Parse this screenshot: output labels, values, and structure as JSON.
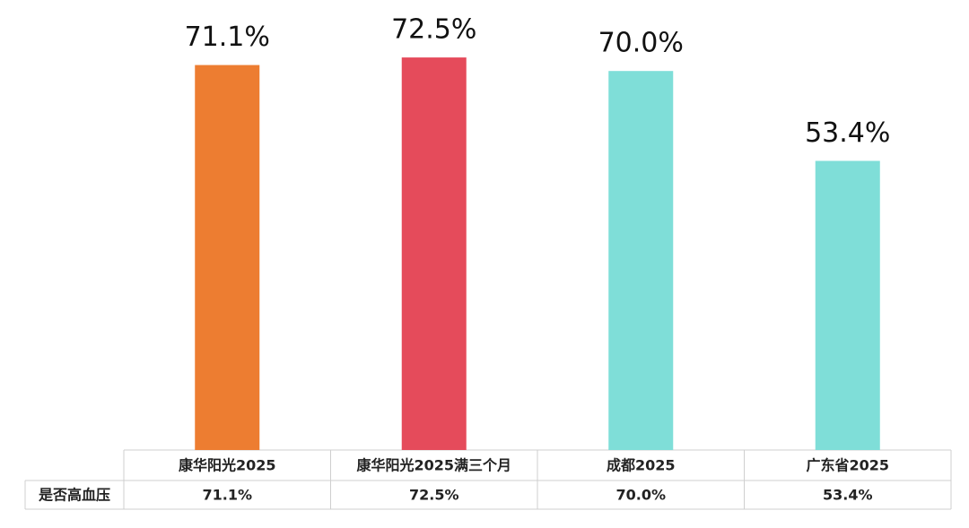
{
  "chart_data": {
    "type": "bar",
    "categories": [
      "康华阳光2025",
      "康华阳光2025满三个月",
      "成都2025",
      "广东省2025"
    ],
    "series": [
      {
        "name": "是否高血压",
        "colors": [
          "#ED7D31",
          "#E54B5B",
          "#7FDED8",
          "#7FDED8"
        ],
        "values": [
          71.1,
          72.5,
          70.0,
          53.4
        ],
        "value_labels": [
          "71.1%",
          "72.5%",
          "70.0%",
          "53.4%"
        ]
      }
    ]
  }
}
